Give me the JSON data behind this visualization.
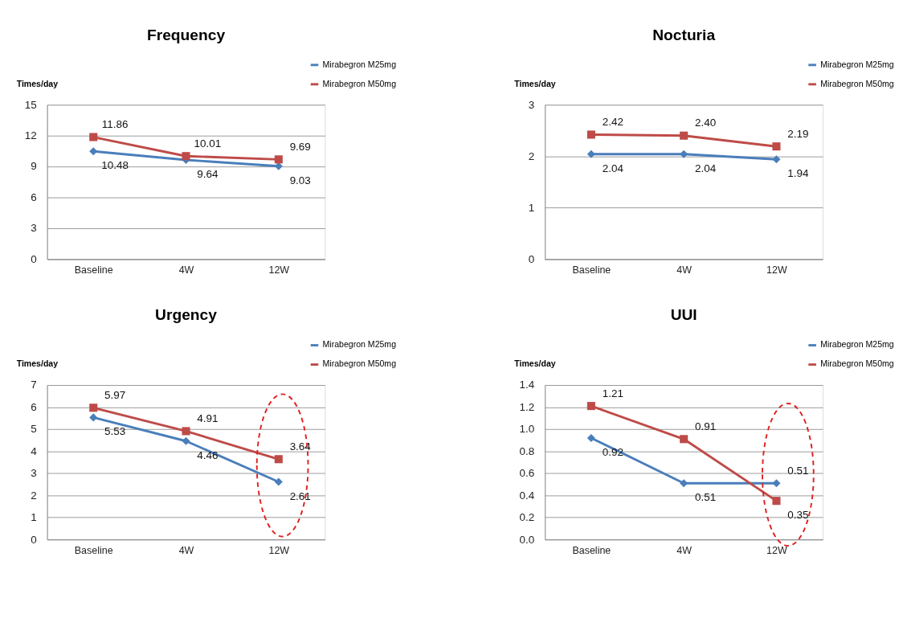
{
  "chart_data": [
    {
      "type": "line",
      "title": "Frequency",
      "ylabel": "Times/day",
      "categories": [
        "Baseline",
        "4W",
        "12W"
      ],
      "series": [
        {
          "name": "Mirabegron M25mg",
          "color": "#4a7ebb",
          "marker": "diamond",
          "values": [
            10.48,
            9.64,
            9.03
          ],
          "value_labels": [
            "10.48",
            "9.64",
            "9.03"
          ]
        },
        {
          "name": "Mirabegron M50mg",
          "color": "#be4b48",
          "marker": "square",
          "values": [
            11.86,
            10.01,
            9.69
          ],
          "value_labels": [
            "11.86",
            "10.01",
            "9.69"
          ]
        }
      ],
      "ylim": [
        0,
        15
      ],
      "yticks": [
        0,
        3,
        6,
        9,
        12,
        15
      ],
      "grid": "y",
      "legend": "top right",
      "line_style": "solid"
    },
    {
      "type": "line",
      "title": "Nocturia",
      "ylabel": "Times/day",
      "categories": [
        "Baseline",
        "4W",
        "12W"
      ],
      "series": [
        {
          "name": "Mirabegron M25mg",
          "color": "#4a7ebb",
          "marker": "diamond",
          "values": [
            2.04,
            2.04,
            1.94
          ],
          "value_labels": [
            "2.04",
            "2.04",
            "1.94"
          ]
        },
        {
          "name": "Mirabegron M50mg",
          "color": "#be4b48",
          "marker": "square",
          "values": [
            2.42,
            2.4,
            2.19
          ],
          "value_labels": [
            "2.42",
            "2.40",
            "2.19"
          ]
        }
      ],
      "ylim": [
        0,
        3
      ],
      "yticks": [
        0,
        1,
        2,
        3
      ],
      "grid": "y",
      "legend": "top right",
      "line_style": "solid"
    },
    {
      "type": "line",
      "title": "Urgency",
      "ylabel": "Times/day",
      "categories": [
        "Baseline",
        "4W",
        "12W"
      ],
      "series": [
        {
          "name": "Mirabegron M25mg",
          "color": "#4a7ebb",
          "marker": "diamond",
          "values": [
            5.53,
            4.46,
            2.61
          ],
          "value_labels": [
            "5.53",
            "4.46",
            "2.61"
          ]
        },
        {
          "name": "Mirabegron M50mg",
          "color": "#be4b48",
          "marker": "square",
          "values": [
            5.97,
            4.91,
            3.64
          ],
          "value_labels": [
            "5.97",
            "4.91",
            "3.64"
          ]
        }
      ],
      "ylim": [
        0,
        7
      ],
      "yticks": [
        0,
        1,
        2,
        3,
        4,
        5,
        6,
        7
      ],
      "grid": "y",
      "legend": "top right",
      "line_style": "solid"
    },
    {
      "type": "line",
      "title": "UUI",
      "ylabel": "Times/day",
      "categories": [
        "Baseline",
        "4W",
        "12W"
      ],
      "series": [
        {
          "name": "Mirabegron M25mg",
          "color": "#4a7ebb",
          "marker": "diamond",
          "values": [
            0.92,
            0.51,
            0.51
          ],
          "value_labels": [
            "0.92",
            "0.51",
            "0.51"
          ]
        },
        {
          "name": "Mirabegron M50mg",
          "color": "#be4b48",
          "marker": "square",
          "values": [
            1.21,
            0.91,
            0.35
          ],
          "value_labels": [
            "1.21",
            "0.91",
            "0.35"
          ]
        }
      ],
      "ylim": [
        0,
        1.4
      ],
      "yticks": [
        {
          "value": 0,
          "label": "0.0"
        },
        {
          "value": 0.2,
          "label": "0.2"
        },
        {
          "value": 0.4,
          "label": "0.4"
        },
        {
          "value": 0.6,
          "label": "0.6"
        },
        {
          "value": 0.8,
          "label": "0.8"
        },
        {
          "value": 1.0,
          "label": "1.0"
        },
        {
          "value": 1.2,
          "label": "1.2"
        },
        {
          "value": 1.4,
          "label": "1.4"
        }
      ],
      "grid": "y",
      "legend": "top right",
      "line_style": "solid"
    }
  ]
}
